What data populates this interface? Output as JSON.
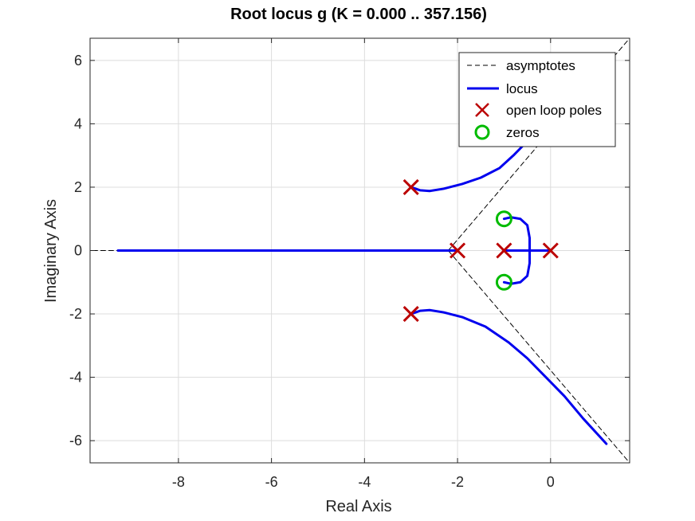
{
  "chart_data": {
    "type": "line",
    "title": "Root locus g (K = 0.000 .. 357.156)",
    "xlabel": "Real Axis",
    "ylabel": "Imaginary Axis",
    "xlim": [
      -9.9,
      1.7
    ],
    "ylim": [
      -6.7,
      6.7
    ],
    "xticks": [
      -8,
      -6,
      -4,
      -2,
      0
    ],
    "yticks": [
      -6,
      -4,
      -2,
      0,
      2,
      4,
      6
    ],
    "xtick_labels": [
      "-8",
      "-6",
      "-4",
      "-2",
      "0"
    ],
    "ytick_labels": [
      "-6",
      "-4",
      "-2",
      "0",
      "2",
      "4",
      "6"
    ],
    "grid": true,
    "legend_position": "top-right",
    "series": [
      {
        "name": "asymptotes",
        "style": "dashed",
        "color": "#000000",
        "segments": [
          [
            [
              -2.2,
              0.0
            ],
            [
              1.7,
              6.7
            ]
          ],
          [
            [
              -2.2,
              0.0
            ],
            [
              1.7,
              -6.7
            ]
          ],
          [
            [
              -2.2,
              0.0
            ],
            [
              -9.9,
              0.0
            ]
          ]
        ]
      },
      {
        "name": "locus",
        "style": "solid",
        "color": "#0000ee",
        "segments": [
          [
            [
              -3.0,
              2.0
            ],
            [
              -2.8,
              1.9
            ],
            [
              -2.6,
              1.88
            ],
            [
              -2.3,
              1.95
            ],
            [
              -1.9,
              2.1
            ],
            [
              -1.5,
              2.3
            ],
            [
              -1.1,
              2.6
            ],
            [
              -0.8,
              3.0
            ],
            [
              -0.6,
              3.3
            ],
            [
              -0.4,
              3.6
            ]
          ],
          [
            [
              -3.0,
              -2.0
            ],
            [
              -2.8,
              -1.9
            ],
            [
              -2.6,
              -1.88
            ],
            [
              -2.3,
              -1.95
            ],
            [
              -1.9,
              -2.1
            ],
            [
              -1.4,
              -2.4
            ],
            [
              -0.9,
              -2.9
            ],
            [
              -0.5,
              -3.4
            ],
            [
              -0.1,
              -4.0
            ],
            [
              0.3,
              -4.6
            ],
            [
              0.7,
              -5.3
            ],
            [
              1.2,
              -6.1
            ]
          ],
          [
            [
              -9.3,
              0.0
            ],
            [
              -2.0,
              0.0
            ]
          ],
          [
            [
              0.0,
              0.0
            ],
            [
              -0.45,
              0.0
            ]
          ],
          [
            [
              -1.0,
              0.0
            ],
            [
              -0.45,
              0.0
            ]
          ],
          [
            [
              -0.45,
              0.0
            ],
            [
              -0.45,
              0.4
            ],
            [
              -0.5,
              0.8
            ],
            [
              -0.65,
              1.0
            ],
            [
              -0.85,
              1.05
            ],
            [
              -1.0,
              1.0
            ]
          ],
          [
            [
              -0.45,
              0.0
            ],
            [
              -0.45,
              -0.4
            ],
            [
              -0.5,
              -0.8
            ],
            [
              -0.65,
              -1.0
            ],
            [
              -0.85,
              -1.05
            ],
            [
              -1.0,
              -1.0
            ]
          ]
        ]
      },
      {
        "name": "open loop poles",
        "marker": "x",
        "color": "#bb0000",
        "points": [
          [
            -3,
            2
          ],
          [
            -3,
            -2
          ],
          [
            -2,
            0
          ],
          [
            -1,
            0
          ],
          [
            0,
            0
          ]
        ]
      },
      {
        "name": "zeros",
        "marker": "o",
        "color": "#00bb00",
        "points": [
          [
            -1,
            1
          ],
          [
            -1,
            -1
          ]
        ]
      }
    ]
  }
}
